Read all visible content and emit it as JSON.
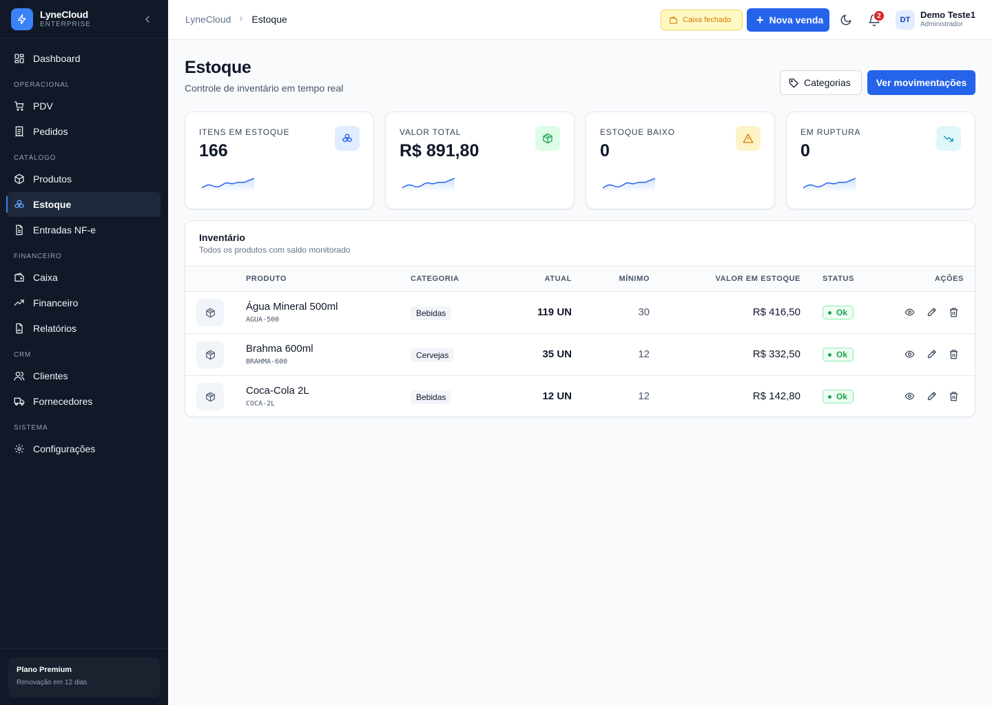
{
  "brand": {
    "name": "LyneCloud",
    "edition": "ENTERPRISE"
  },
  "sidebar": {
    "dashboard": "Dashboard",
    "sections": {
      "operacional": "OPERACIONAL",
      "catalogo": "CATÁLOGO",
      "financeiro": "FINANCEIRO",
      "crm": "CRM",
      "sistema": "SISTEMA"
    },
    "items": {
      "pdv": "PDV",
      "pedidos": "Pedidos",
      "produtos": "Produtos",
      "estoque": "Estoque",
      "entradas": "Entradas NF-e",
      "caixa": "Caixa",
      "financeiro": "Financeiro",
      "relatorios": "Relatórios",
      "clientes": "Clientes",
      "fornecedores": "Fornecedores",
      "configuracoes": "Configurações"
    },
    "plan": {
      "title": "Plano Premium",
      "renewal": "Renovação em 12 dias"
    }
  },
  "header": {
    "breadcrumb": [
      "LyneCloud",
      "Estoque"
    ],
    "cash_status": "Caixa fechado",
    "new_sale": "Nova venda",
    "notifications": "2",
    "user": {
      "initials": "DT",
      "name": "Demo Teste1",
      "role": "Administrador"
    }
  },
  "page": {
    "title": "Estoque",
    "subtitle": "Controle de inventário em tempo real",
    "categories_button": "Categorias",
    "movements_button": "Ver movimentações"
  },
  "kpis": [
    {
      "label": "ITENS EM ESTOQUE",
      "value": "166",
      "icon": "boxes-icon",
      "color": "#2563eb",
      "bg": "#e0ecff"
    },
    {
      "label": "VALOR TOTAL",
      "value": "R$ 891,80",
      "icon": "package-icon",
      "color": "#16a34a",
      "bg": "#dcfce7"
    },
    {
      "label": "ESTOQUE BAIXO",
      "value": "0",
      "icon": "warning-icon",
      "color": "#d97706",
      "bg": "#fef3c7"
    },
    {
      "label": "EM RUPTURA",
      "value": "0",
      "icon": "trending-down-icon",
      "color": "#0891b2",
      "bg": "#e0f7fa"
    }
  ],
  "inventory": {
    "title": "Inventário",
    "subtitle": "Todos os produtos com saldo monitorado",
    "columns": {
      "produto": "PRODUTO",
      "categoria": "CATEGORIA",
      "atual": "ATUAL",
      "minimo": "MÍNIMO",
      "valor": "VALOR EM ESTOQUE",
      "status": "STATUS",
      "acoes": "AÇÕES"
    },
    "rows": [
      {
        "name": "Água Mineral 500ml",
        "sku": "AGUA-500",
        "category": "Bebidas",
        "current": "119 UN",
        "min": "30",
        "value": "R$ 416,50",
        "status": "Ok"
      },
      {
        "name": "Brahma 600ml",
        "sku": "BRAHMA-600",
        "category": "Cervejas",
        "current": "35 UN",
        "min": "12",
        "value": "R$ 332,50",
        "status": "Ok"
      },
      {
        "name": "Coca-Cola 2L",
        "sku": "COCA-2L",
        "category": "Bebidas",
        "current": "12 UN",
        "min": "12",
        "value": "R$ 142,80",
        "status": "Ok"
      }
    ]
  }
}
